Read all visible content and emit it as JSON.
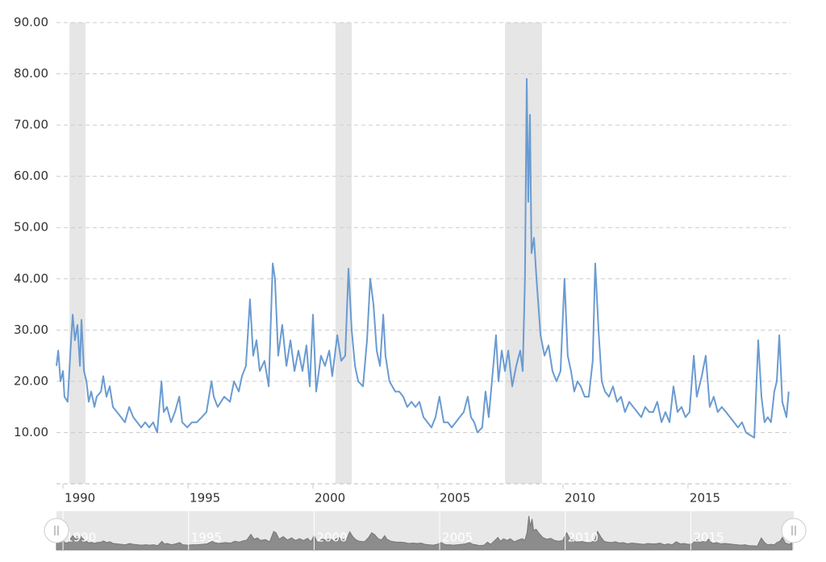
{
  "chart_data": {
    "type": "line",
    "x": [
      1989.74,
      1989.81,
      1989.9,
      1990.0,
      1990.06,
      1990.19,
      1990.29,
      1990.39,
      1990.48,
      1990.58,
      1990.68,
      1990.74,
      1990.84,
      1990.94,
      1991.03,
      1991.13,
      1991.26,
      1991.35,
      1991.52,
      1991.61,
      1991.74,
      1991.87,
      1992.0,
      1992.16,
      1992.32,
      1992.48,
      1992.65,
      1992.81,
      1992.97,
      1993.13,
      1993.29,
      1993.45,
      1993.61,
      1993.77,
      1993.94,
      1994.03,
      1994.16,
      1994.32,
      1994.48,
      1994.65,
      1994.77,
      1994.97,
      1995.16,
      1995.35,
      1995.55,
      1995.74,
      1995.94,
      1996.03,
      1996.19,
      1996.45,
      1996.68,
      1996.84,
      1997.03,
      1997.16,
      1997.32,
      1997.48,
      1997.61,
      1997.74,
      1997.87,
      1998.06,
      1998.23,
      1998.39,
      1998.48,
      1998.61,
      1998.77,
      1998.94,
      1999.1,
      1999.26,
      1999.42,
      1999.58,
      1999.74,
      1999.87,
      2000.0,
      2000.13,
      2000.32,
      2000.48,
      2000.65,
      2000.77,
      2000.97,
      2001.13,
      2001.29,
      2001.42,
      2001.55,
      2001.68,
      2001.81,
      2002.0,
      2002.16,
      2002.29,
      2002.42,
      2002.55,
      2002.68,
      2002.81,
      2002.9,
      2003.06,
      2003.29,
      2003.45,
      2003.61,
      2003.77,
      2003.94,
      2004.1,
      2004.26,
      2004.42,
      2004.58,
      2004.74,
      2004.9,
      2005.06,
      2005.23,
      2005.39,
      2005.55,
      2005.71,
      2005.87,
      2006.03,
      2006.19,
      2006.32,
      2006.45,
      2006.58,
      2006.77,
      2006.9,
      2007.03,
      2007.23,
      2007.32,
      2007.42,
      2007.55,
      2007.68,
      2007.81,
      2007.97,
      2008.13,
      2008.29,
      2008.39,
      2008.48,
      2008.55,
      2008.61,
      2008.68,
      2008.74,
      2008.84,
      2008.94,
      2009.1,
      2009.26,
      2009.42,
      2009.58,
      2009.74,
      2009.9,
      2010.06,
      2010.19,
      2010.32,
      2010.45,
      2010.58,
      2010.71,
      2010.87,
      2011.03,
      2011.19,
      2011.29,
      2011.42,
      2011.55,
      2011.68,
      2011.84,
      2012.0,
      2012.16,
      2012.32,
      2012.48,
      2012.65,
      2012.81,
      2012.97,
      2013.13,
      2013.29,
      2013.45,
      2013.61,
      2013.77,
      2013.94,
      2014.1,
      2014.26,
      2014.42,
      2014.58,
      2014.74,
      2014.9,
      2015.06,
      2015.23,
      2015.35,
      2015.55,
      2015.71,
      2015.87,
      2016.03,
      2016.19,
      2016.35,
      2016.52,
      2016.68,
      2016.84,
      2017.0,
      2017.16,
      2017.32,
      2017.48,
      2017.65,
      2017.81,
      2017.94,
      2018.06,
      2018.19,
      2018.32,
      2018.45,
      2018.55,
      2018.65,
      2018.77,
      2018.94,
      2019.03
    ],
    "values": [
      23,
      26,
      20,
      22,
      17,
      16,
      25,
      33,
      28,
      31,
      23,
      32,
      22,
      20,
      16,
      18,
      15,
      17,
      18,
      21,
      17,
      19,
      15,
      14,
      13,
      12,
      15,
      13,
      12,
      11,
      12,
      11,
      12,
      10,
      20,
      14,
      15,
      12,
      14,
      17,
      12,
      11,
      12,
      12,
      13,
      14,
      20,
      17,
      15,
      17,
      16,
      20,
      18,
      21,
      23,
      36,
      25,
      28,
      22,
      24,
      19,
      43,
      40,
      25,
      31,
      23,
      28,
      22,
      26,
      22,
      27,
      19,
      33,
      18,
      25,
      23,
      26,
      21,
      29,
      24,
      25,
      42,
      30,
      23,
      20,
      19,
      28,
      40,
      35,
      26,
      23,
      33,
      25,
      20,
      18,
      18,
      17,
      15,
      16,
      15,
      16,
      13,
      12,
      11,
      13,
      17,
      12,
      12,
      11,
      12,
      13,
      14,
      17,
      13,
      12,
      10,
      11,
      18,
      13,
      24,
      29,
      20,
      26,
      22,
      26,
      19,
      23,
      26,
      22,
      40,
      79,
      55,
      72,
      45,
      48,
      40,
      29,
      25,
      27,
      22,
      20,
      22,
      40,
      25,
      22,
      18,
      20,
      19,
      17,
      17,
      24,
      43,
      30,
      20,
      18,
      17,
      19,
      16,
      17,
      14,
      16,
      15,
      14,
      13,
      15,
      14,
      14,
      16,
      12,
      14,
      12,
      19,
      14,
      15,
      13,
      14,
      25,
      17,
      21,
      25,
      15,
      17,
      14,
      15,
      14,
      13,
      12,
      11,
      12,
      10,
      9.5,
      9,
      28,
      17,
      12,
      13,
      12,
      18,
      20,
      29,
      16,
      13,
      18
    ],
    "color": "#6a9bd1",
    "shaded_ranges": [
      [
        1990.26,
        1990.9
      ],
      [
        2000.9,
        2001.55
      ],
      [
        2007.68,
        2009.16
      ]
    ],
    "shade_color": "#e6e6e6",
    "xlim": [
      1989.74,
      2019.1
    ],
    "xticks": [
      1990,
      1995,
      2000,
      2005,
      2010,
      2015
    ],
    "ylim": [
      0,
      90
    ],
    "yticks": [
      {
        "value": 10,
        "label": "10.00"
      },
      {
        "value": 20,
        "label": "20.00"
      },
      {
        "value": 30,
        "label": "30.00"
      },
      {
        "value": 40,
        "label": "40.00"
      },
      {
        "value": 50,
        "label": "50.00"
      },
      {
        "value": 60,
        "label": "60.00"
      },
      {
        "value": 70,
        "label": "70.00"
      },
      {
        "value": 80,
        "label": "80.00"
      },
      {
        "value": 90,
        "label": "90.00"
      }
    ],
    "grid": true
  }
}
